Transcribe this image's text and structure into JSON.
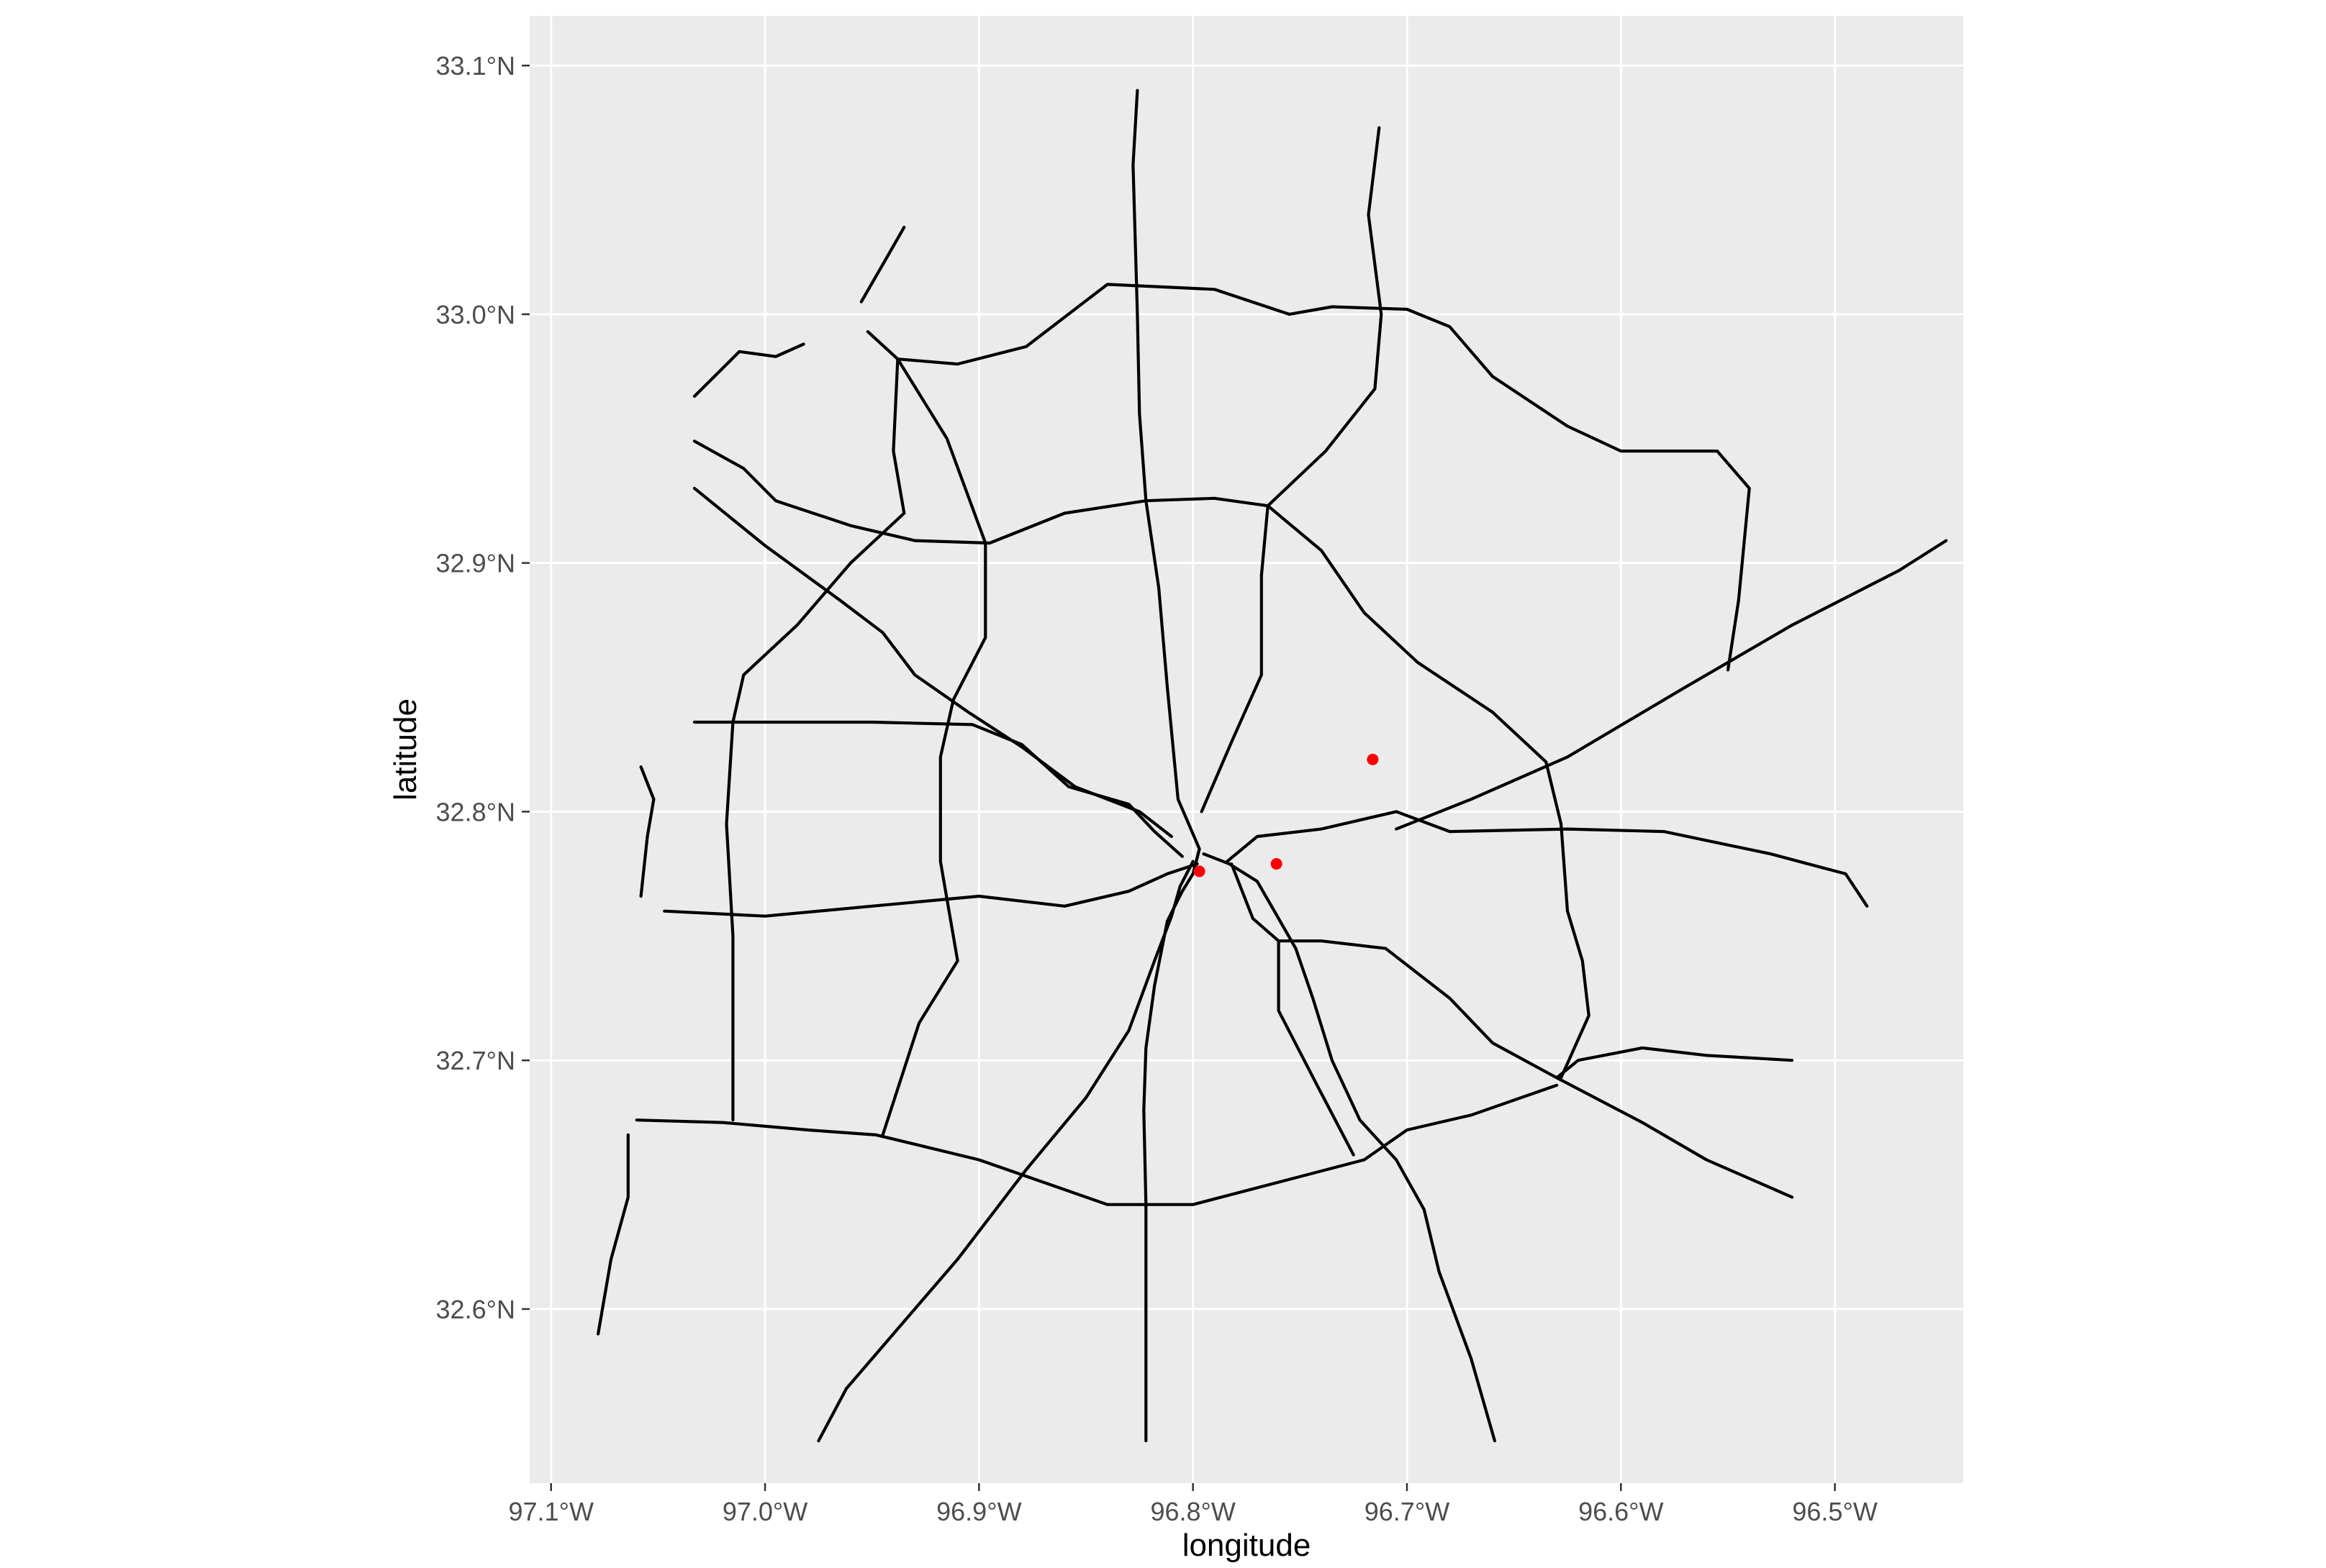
{
  "chart_data": {
    "type": "scatter",
    "subtype": "map",
    "title": "",
    "xlabel": "longitude",
    "ylabel": "latitude",
    "xlim": [
      -97.11,
      -96.44
    ],
    "ylim": [
      32.53,
      33.12
    ],
    "grid": true,
    "legend": "none",
    "colors": {
      "panel": "#EBEBEB",
      "grid": "#FFFFFF",
      "road": "#000000",
      "point": "#FF0000"
    },
    "x_ticks": [
      {
        "value": -97.1,
        "label": "97.1°W"
      },
      {
        "value": -97.0,
        "label": "97.0°W"
      },
      {
        "value": -96.9,
        "label": "96.9°W"
      },
      {
        "value": -96.8,
        "label": "96.8°W"
      },
      {
        "value": -96.7,
        "label": "96.7°W"
      },
      {
        "value": -96.6,
        "label": "96.6°W"
      },
      {
        "value": -96.5,
        "label": "96.5°W"
      }
    ],
    "y_ticks": [
      {
        "value": 32.6,
        "label": "32.6°N"
      },
      {
        "value": 32.7,
        "label": "32.7°N"
      },
      {
        "value": 32.8,
        "label": "32.8°N"
      },
      {
        "value": 32.9,
        "label": "32.9°N"
      },
      {
        "value": 33.0,
        "label": "33.0°N"
      },
      {
        "value": 33.1,
        "label": "33.1°N"
      }
    ],
    "points": [
      {
        "lon": -96.797,
        "lat": 32.776
      },
      {
        "lon": -96.761,
        "lat": 32.779
      },
      {
        "lon": -96.716,
        "lat": 32.821
      }
    ],
    "roads": [
      [
        [
          -96.822,
          32.547
        ],
        [
          -96.822,
          32.6
        ],
        [
          -96.822,
          32.642
        ],
        [
          -96.823,
          32.68
        ],
        [
          -96.822,
          32.705
        ],
        [
          -96.818,
          32.73
        ],
        [
          -96.812,
          32.756
        ],
        [
          -96.805,
          32.768
        ],
        [
          -96.8,
          32.775
        ],
        [
          -96.797,
          32.785
        ],
        [
          -96.803,
          32.797
        ],
        [
          -96.807,
          32.805
        ],
        [
          -96.812,
          32.85
        ],
        [
          -96.816,
          32.89
        ],
        [
          -96.822,
          32.925
        ],
        [
          -96.825,
          32.96
        ],
        [
          -96.826,
          33.0
        ],
        [
          -96.827,
          33.03
        ],
        [
          -96.828,
          33.06
        ],
        [
          -96.826,
          33.09
        ]
      ],
      [
        [
          -96.659,
          32.547
        ],
        [
          -96.67,
          32.58
        ],
        [
          -96.685,
          32.615
        ],
        [
          -96.692,
          32.64
        ],
        [
          -96.705,
          32.66
        ],
        [
          -96.722,
          32.676
        ],
        [
          -96.735,
          32.7
        ],
        [
          -96.744,
          32.725
        ],
        [
          -96.752,
          32.745
        ],
        [
          -96.762,
          32.76
        ],
        [
          -96.77,
          32.772
        ],
        [
          -96.783,
          32.779
        ],
        [
          -96.795,
          32.783
        ]
      ],
      [
        [
          -96.975,
          32.547
        ],
        [
          -96.962,
          32.568
        ],
        [
          -96.94,
          32.59
        ],
        [
          -96.91,
          32.62
        ],
        [
          -96.878,
          32.656
        ],
        [
          -96.85,
          32.685
        ],
        [
          -96.83,
          32.712
        ],
        [
          -96.818,
          32.74
        ],
        [
          -96.81,
          32.758
        ],
        [
          -96.806,
          32.77
        ],
        [
          -96.8,
          32.78
        ]
      ],
      [
        [
          -97.047,
          32.76
        ],
        [
          -97.0,
          32.758
        ],
        [
          -96.95,
          32.762
        ],
        [
          -96.9,
          32.766
        ],
        [
          -96.86,
          32.762
        ],
        [
          -96.83,
          32.768
        ],
        [
          -96.812,
          32.775
        ],
        [
          -96.798,
          32.779
        ]
      ],
      [
        [
          -97.06,
          32.676
        ],
        [
          -97.02,
          32.675
        ],
        [
          -96.98,
          32.672
        ],
        [
          -96.948,
          32.67
        ],
        [
          -96.9,
          32.66
        ],
        [
          -96.87,
          32.651
        ],
        [
          -96.84,
          32.642
        ],
        [
          -96.8,
          32.642
        ],
        [
          -96.76,
          32.651
        ],
        [
          -96.72,
          32.66
        ],
        [
          -96.7,
          32.672
        ],
        [
          -96.67,
          32.678
        ],
        [
          -96.63,
          32.69
        ]
      ],
      [
        [
          -97.033,
          32.836
        ],
        [
          -96.99,
          32.836
        ],
        [
          -96.95,
          32.836
        ],
        [
          -96.903,
          32.835
        ],
        [
          -96.88,
          32.827
        ],
        [
          -96.858,
          32.81
        ],
        [
          -96.83,
          32.803
        ],
        [
          -96.818,
          32.792
        ],
        [
          -96.805,
          32.782
        ]
      ],
      [
        [
          -97.033,
          32.93
        ],
        [
          -97.0,
          32.907
        ],
        [
          -96.965,
          32.885
        ],
        [
          -96.945,
          32.872
        ],
        [
          -96.93,
          32.855
        ],
        [
          -96.905,
          32.84
        ],
        [
          -96.88,
          32.826
        ],
        [
          -96.855,
          32.81
        ],
        [
          -96.825,
          32.8
        ],
        [
          -96.81,
          32.79
        ]
      ],
      [
        [
          -97.033,
          32.949
        ],
        [
          -97.01,
          32.938
        ],
        [
          -96.995,
          32.925
        ],
        [
          -96.96,
          32.915
        ],
        [
          -96.93,
          32.909
        ],
        [
          -96.895,
          32.908
        ],
        [
          -96.86,
          32.92
        ],
        [
          -96.822,
          32.925
        ],
        [
          -96.79,
          32.926
        ],
        [
          -96.765,
          32.923
        ]
      ],
      [
        [
          -96.765,
          32.923
        ],
        [
          -96.74,
          32.905
        ],
        [
          -96.72,
          32.88
        ],
        [
          -96.695,
          32.86
        ],
        [
          -96.66,
          32.84
        ],
        [
          -96.635,
          32.82
        ],
        [
          -96.628,
          32.795
        ],
        [
          -96.625,
          32.76
        ],
        [
          -96.618,
          32.74
        ],
        [
          -96.615,
          32.718
        ],
        [
          -96.628,
          32.693
        ]
      ],
      [
        [
          -96.485,
          32.762
        ],
        [
          -96.495,
          32.775
        ],
        [
          -96.53,
          32.783
        ],
        [
          -96.58,
          32.792
        ],
        [
          -96.625,
          32.793
        ],
        [
          -96.68,
          32.792
        ],
        [
          -96.705,
          32.8
        ],
        [
          -96.74,
          32.793
        ],
        [
          -96.77,
          32.79
        ],
        [
          -96.784,
          32.78
        ]
      ],
      [
        [
          -96.448,
          32.909
        ],
        [
          -96.47,
          32.897
        ],
        [
          -96.52,
          32.875
        ],
        [
          -96.57,
          32.85
        ],
        [
          -96.625,
          32.822
        ],
        [
          -96.67,
          32.805
        ],
        [
          -96.705,
          32.793
        ]
      ],
      [
        [
          -96.52,
          32.645
        ],
        [
          -96.56,
          32.66
        ],
        [
          -96.59,
          32.675
        ],
        [
          -96.63,
          32.693
        ],
        [
          -96.66,
          32.707
        ],
        [
          -96.68,
          32.725
        ],
        [
          -96.71,
          32.745
        ],
        [
          -96.74,
          32.748
        ],
        [
          -96.76,
          32.748
        ],
        [
          -96.772,
          32.757
        ],
        [
          -96.782,
          32.779
        ]
      ],
      [
        [
          -96.52,
          32.7
        ],
        [
          -96.56,
          32.702
        ],
        [
          -96.59,
          32.705
        ],
        [
          -96.62,
          32.7
        ],
        [
          -96.63,
          32.693
        ]
      ],
      [
        [
          -96.76,
          32.748
        ],
        [
          -96.76,
          32.72
        ],
        [
          -96.742,
          32.69
        ],
        [
          -96.725,
          32.662
        ]
      ],
      [
        [
          -96.952,
          32.993
        ],
        [
          -96.938,
          32.982
        ],
        [
          -96.915,
          32.95
        ],
        [
          -96.897,
          32.908
        ],
        [
          -96.897,
          32.87
        ],
        [
          -96.912,
          32.845
        ],
        [
          -96.918,
          32.822
        ],
        [
          -96.918,
          32.78
        ],
        [
          -96.91,
          32.74
        ],
        [
          -96.928,
          32.715
        ],
        [
          -96.945,
          32.67
        ]
      ],
      [
        [
          -96.765,
          32.923
        ],
        [
          -96.768,
          32.895
        ],
        [
          -96.768,
          32.855
        ],
        [
          -96.782,
          32.828
        ],
        [
          -96.796,
          32.8
        ]
      ],
      [
        [
          -96.938,
          32.982
        ],
        [
          -96.91,
          32.98
        ],
        [
          -96.878,
          32.987
        ],
        [
          -96.84,
          33.012
        ],
        [
          -96.79,
          33.01
        ],
        [
          -96.755,
          33.0
        ],
        [
          -96.735,
          33.003
        ],
        [
          -96.7,
          33.002
        ],
        [
          -96.68,
          32.995
        ],
        [
          -96.66,
          32.975
        ],
        [
          -96.625,
          32.955
        ],
        [
          -96.6,
          32.945
        ],
        [
          -96.555,
          32.945
        ],
        [
          -96.54,
          32.93
        ],
        [
          -96.545,
          32.885
        ],
        [
          -96.55,
          32.857
        ]
      ],
      [
        [
          -96.713,
          33.075
        ],
        [
          -96.718,
          33.04
        ],
        [
          -96.712,
          33.0
        ],
        [
          -96.715,
          32.97
        ],
        [
          -96.738,
          32.945
        ],
        [
          -96.765,
          32.923
        ]
      ],
      [
        [
          -97.015,
          32.676
        ],
        [
          -97.015,
          32.75
        ],
        [
          -97.018,
          32.795
        ],
        [
          -97.015,
          32.836
        ],
        [
          -97.01,
          32.855
        ],
        [
          -96.985,
          32.875
        ],
        [
          -96.96,
          32.9
        ],
        [
          -96.935,
          32.92
        ],
        [
          -96.94,
          32.945
        ],
        [
          -96.938,
          32.982
        ]
      ],
      [
        [
          -97.033,
          32.967
        ],
        [
          -97.012,
          32.985
        ],
        [
          -96.995,
          32.983
        ],
        [
          -96.982,
          32.988
        ]
      ],
      [
        [
          -96.955,
          33.005
        ],
        [
          -96.945,
          33.02
        ],
        [
          -96.935,
          33.035
        ]
      ],
      [
        [
          -97.058,
          32.818
        ],
        [
          -97.052,
          32.805
        ],
        [
          -97.055,
          32.79
        ],
        [
          -97.058,
          32.766
        ]
      ],
      [
        [
          -97.064,
          32.67
        ],
        [
          -97.064,
          32.645
        ],
        [
          -97.072,
          32.62
        ],
        [
          -97.078,
          32.59
        ]
      ]
    ]
  }
}
